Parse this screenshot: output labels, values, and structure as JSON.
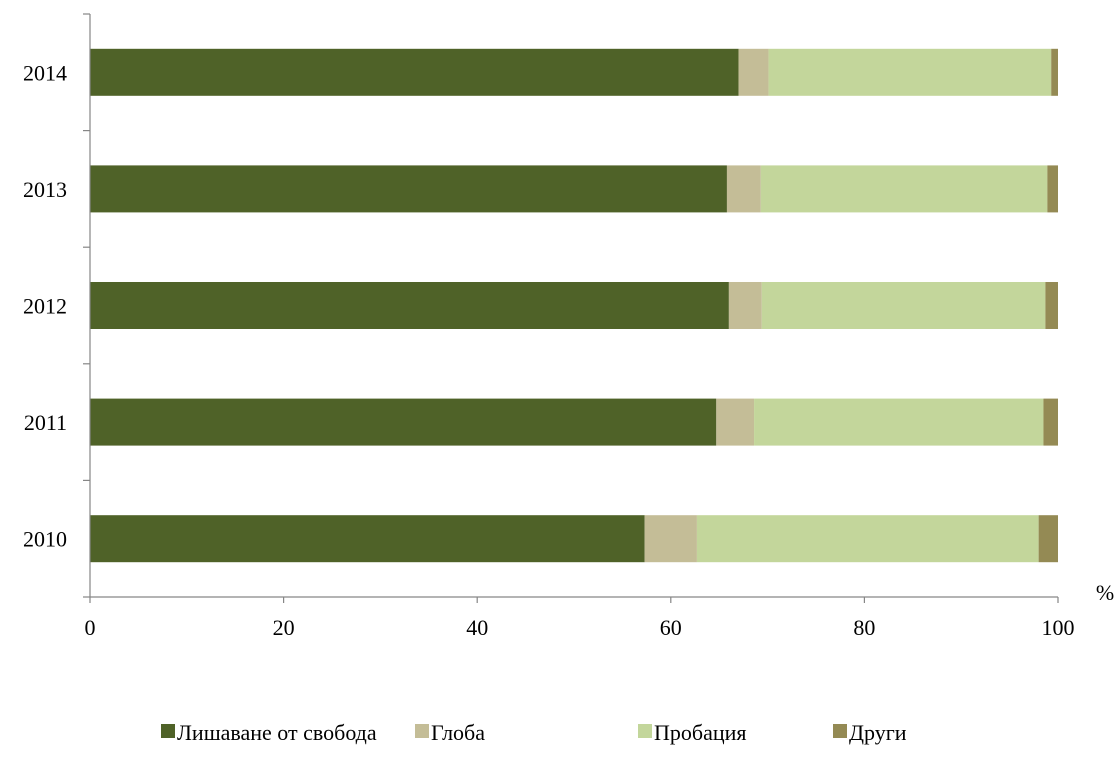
{
  "chart_data": {
    "type": "bar",
    "orientation": "horizontal",
    "stacked": true,
    "categories": [
      "2010",
      "2011",
      "2012",
      "2013",
      "2014"
    ],
    "series": [
      {
        "name": "Лишаване от свобода",
        "color": "#4f6228",
        "values": [
          57.3,
          64.7,
          66.0,
          65.8,
          67.0
        ]
      },
      {
        "name": "Глоба",
        "color": "#c4bd97",
        "values": [
          5.4,
          3.9,
          3.4,
          3.5,
          3.1
        ]
      },
      {
        "name": "Пробация",
        "color": "#c3d69b",
        "values": [
          35.3,
          29.9,
          29.3,
          29.6,
          29.2
        ]
      },
      {
        "name": "Други",
        "color": "#948a54",
        "values": [
          2.0,
          1.5,
          1.3,
          1.1,
          0.7
        ]
      }
    ],
    "x_ticks": [
      "0",
      "20",
      "40",
      "60",
      "80",
      "100"
    ],
    "xlim": [
      0,
      100
    ],
    "xlabel": "%",
    "ylabel": "",
    "grid": false,
    "legend_position": "bottom"
  }
}
